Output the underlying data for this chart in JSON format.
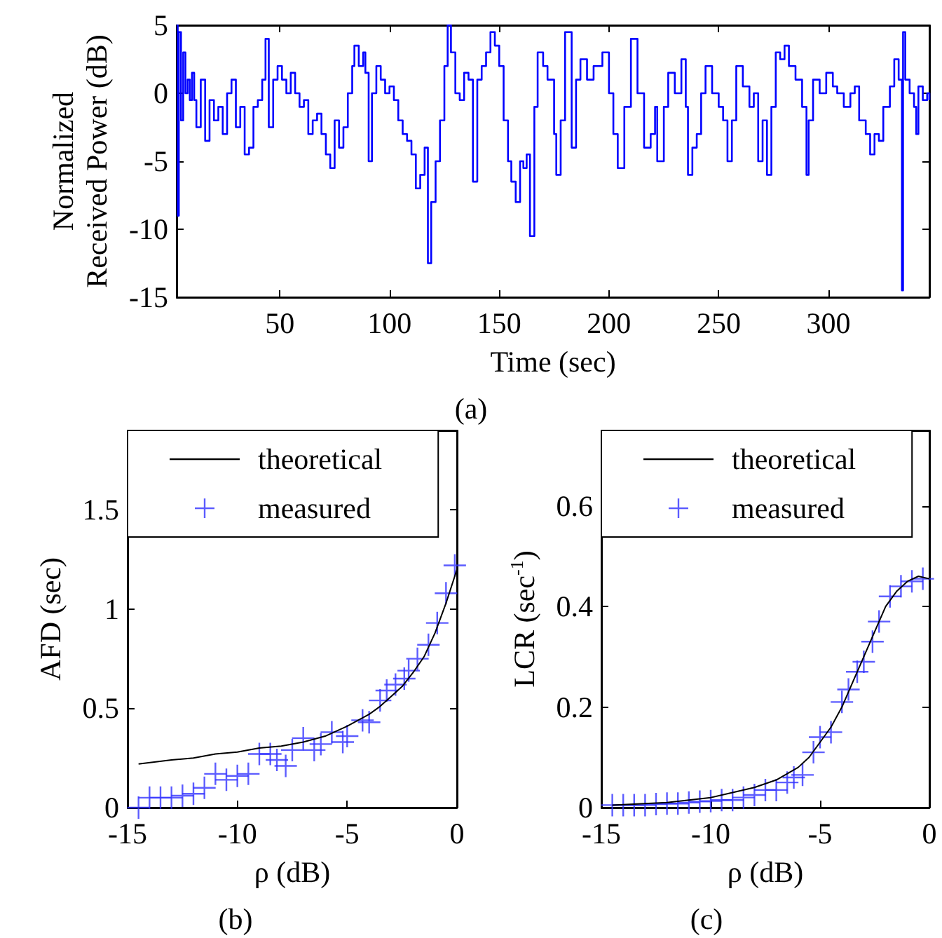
{
  "chart_data": [
    {
      "type": "step",
      "xlabel": "Time (sec)",
      "ylabel": "Normalized\nReceived Power (dB)",
      "annotations": [
        "(a)"
      ],
      "xlim": [
        3,
        346
      ],
      "ylim": [
        -15,
        5
      ],
      "xticks": [
        50,
        100,
        150,
        200,
        250,
        300
      ],
      "yticks": [
        -15,
        -10,
        -5,
        0,
        5
      ],
      "grid": false,
      "legend": false,
      "series": [
        {
          "color": "#0000ff",
          "x": [
            3,
            3.5,
            4,
            5,
            6,
            7,
            8,
            9,
            10,
            11,
            12,
            14,
            16,
            18,
            20,
            22,
            24,
            26,
            28,
            30,
            32,
            34,
            36,
            38,
            40,
            42,
            43.5,
            45,
            47,
            49,
            51,
            53,
            55,
            57,
            59,
            61,
            63,
            65,
            67,
            69,
            71,
            73,
            75,
            77,
            79,
            81,
            83,
            84,
            86,
            88,
            89,
            90.5,
            92,
            94,
            96,
            98,
            100,
            102,
            104,
            106,
            108,
            110,
            112,
            114,
            116,
            117.5,
            119,
            121,
            123,
            125,
            126.5,
            128,
            130,
            132,
            134,
            136,
            138,
            140,
            142,
            144,
            146,
            148,
            150,
            152,
            154,
            155.5,
            157.5,
            159.5,
            161,
            162.5,
            164,
            166,
            167.5,
            170,
            172,
            175,
            176,
            178,
            180,
            183,
            185,
            187,
            190,
            193,
            197,
            200,
            202,
            204,
            207,
            210,
            213,
            216,
            219,
            221,
            222,
            225,
            227,
            230,
            233,
            235,
            236,
            238,
            240,
            242,
            244,
            247,
            250,
            252,
            254,
            256,
            258,
            261,
            264,
            266,
            268,
            270,
            272,
            274,
            276,
            278,
            280,
            282,
            285,
            288,
            290,
            291,
            293,
            296,
            299,
            302,
            304,
            307,
            310,
            312,
            314,
            317,
            319,
            321,
            323,
            325,
            328,
            330,
            332,
            333.5,
            334,
            335,
            337,
            339,
            340,
            341,
            343,
            345,
            346
          ],
          "values": [
            5,
            -9,
            4.5,
            -2,
            3,
            0,
            1,
            -0.5,
            1.5,
            -0.5,
            -2.5,
            1,
            -3.5,
            -0.5,
            -2,
            -1,
            -3,
            0,
            1,
            -2.5,
            -1,
            -4.5,
            -4,
            -1,
            -0.5,
            1,
            4,
            -2.5,
            1,
            2,
            1,
            0,
            1.5,
            0,
            -1,
            -0.5,
            -3,
            -2,
            -1.5,
            -3,
            -4.5,
            -5.5,
            -2,
            -4,
            -2.5,
            0,
            2,
            3.5,
            2,
            3,
            1.5,
            -5,
            0,
            2,
            1,
            0,
            0.5,
            -0.5,
            -2,
            -3,
            -3.5,
            -4.5,
            -7,
            -6,
            -4,
            -12.5,
            -8,
            -5,
            -2,
            2,
            5,
            3,
            0,
            -0.5,
            1.5,
            1,
            -6.5,
            1,
            2,
            3,
            4.5,
            3.5,
            2,
            -2,
            -5,
            -6.5,
            -8,
            -5,
            -5.5,
            -4.5,
            -10.5,
            -1,
            3,
            2,
            1,
            -3,
            -6,
            -2,
            4.5,
            -4,
            1,
            2.5,
            1,
            2,
            3,
            0,
            -3,
            -5.5,
            -1,
            4,
            0,
            -4,
            -3,
            -1,
            -5,
            -1,
            1.5,
            0,
            2.5,
            -1,
            -6,
            -4,
            -3,
            0,
            2,
            0,
            -1,
            -2,
            -5,
            -2,
            2,
            0.5,
            -1,
            0,
            -5,
            -2,
            -6,
            -1,
            3,
            2.5,
            3.5,
            2,
            1,
            -1,
            -6,
            -2,
            1,
            0,
            1.5,
            0.5,
            0,
            -1,
            0,
            0.5,
            -2,
            -3,
            -4.5,
            -3,
            -3.5,
            -1,
            0.5,
            2.5,
            1,
            -14.5,
            4.5,
            1,
            0,
            -1,
            -3,
            0.5,
            -0.5,
            0,
            -0.5
          ]
        }
      ]
    },
    {
      "type": "line",
      "xlabel": "ρ (dB)",
      "ylabel": "AFD (sec)",
      "annotations": [
        "(b)"
      ],
      "xlim": [
        -15,
        0
      ],
      "ylim": [
        0,
        1.9
      ],
      "xticks": [
        -15,
        -10,
        -5,
        0
      ],
      "yticks": [
        0,
        0.5,
        1,
        1.5
      ],
      "grid": false,
      "legend": "top",
      "series": [
        {
          "name": "theoretical",
          "type": "line",
          "color": "#000000",
          "x": [
            -14.5,
            -13,
            -12,
            -11,
            -10,
            -9,
            -8,
            -7,
            -6,
            -5,
            -4.5,
            -4,
            -3.5,
            -3,
            -2.5,
            -2,
            -1.5,
            -1,
            -0.5,
            0
          ],
          "values": [
            0.22,
            0.24,
            0.25,
            0.27,
            0.28,
            0.3,
            0.31,
            0.33,
            0.36,
            0.41,
            0.44,
            0.47,
            0.51,
            0.56,
            0.61,
            0.68,
            0.76,
            0.88,
            1.03,
            1.2
          ]
        },
        {
          "name": "measured",
          "type": "scatter",
          "marker": "cross",
          "color": "#3333ff",
          "x": [
            -14.5,
            -14,
            -13.5,
            -13,
            -12.5,
            -12,
            -11.5,
            -11,
            -10.5,
            -10,
            -9.5,
            -9,
            -8.5,
            -8.2,
            -7.8,
            -7.5,
            -7,
            -6.5,
            -6.2,
            -5.7,
            -5.2,
            -5,
            -4.3,
            -4,
            -3.5,
            -3.2,
            -2.8,
            -2.4,
            -2.2,
            -1.8,
            -1.3,
            -0.9,
            -0.5,
            -0.1
          ],
          "values": [
            0,
            0.05,
            0.05,
            0.05,
            0.06,
            0.07,
            0.1,
            0.17,
            0.14,
            0.16,
            0.17,
            0.27,
            0.27,
            0.24,
            0.21,
            0.29,
            0.35,
            0.29,
            0.32,
            0.38,
            0.33,
            0.36,
            0.44,
            0.43,
            0.54,
            0.59,
            0.62,
            0.65,
            0.69,
            0.75,
            0.82,
            0.93,
            1.08,
            1.22
          ]
        }
      ]
    },
    {
      "type": "line",
      "xlabel": "ρ (dB)",
      "ylabel": "LCR (sec$^{-1}$)",
      "annotations": [
        "(c)"
      ],
      "xlim": [
        -15,
        0
      ],
      "ylim": [
        0,
        0.75
      ],
      "xticks": [
        -15,
        -10,
        -5,
        0
      ],
      "yticks": [
        0,
        0.2,
        0.4,
        0.6
      ],
      "grid": false,
      "legend": "top",
      "series": [
        {
          "name": "theoretical",
          "type": "line",
          "color": "#000000",
          "x": [
            -14.5,
            -12,
            -10,
            -9,
            -8,
            -7,
            -6,
            -5.5,
            -5,
            -4.5,
            -4,
            -3.5,
            -3,
            -2.5,
            -2,
            -1.5,
            -1,
            -0.5,
            0
          ],
          "values": [
            0.005,
            0.01,
            0.02,
            0.03,
            0.04,
            0.055,
            0.08,
            0.1,
            0.13,
            0.16,
            0.2,
            0.25,
            0.3,
            0.35,
            0.4,
            0.43,
            0.45,
            0.46,
            0.455
          ]
        },
        {
          "name": "measured",
          "type": "scatter",
          "marker": "cross",
          "color": "#3333ff",
          "x": [
            -14.5,
            -14,
            -13.5,
            -13,
            -12.5,
            -12,
            -11.5,
            -11,
            -10.5,
            -10,
            -9.5,
            -9,
            -8.5,
            -8,
            -7.5,
            -7,
            -6.5,
            -6.2,
            -5.8,
            -5.3,
            -5,
            -4.5,
            -4,
            -3.7,
            -3.3,
            -3,
            -2.6,
            -2.3,
            -1.8,
            -1.3,
            -0.8,
            -0.3
          ],
          "values": [
            0.005,
            0.005,
            0.005,
            0.005,
            0.007,
            0.008,
            0.008,
            0.01,
            0.012,
            0.013,
            0.015,
            0.015,
            0.02,
            0.025,
            0.035,
            0.035,
            0.05,
            0.06,
            0.065,
            0.11,
            0.14,
            0.15,
            0.21,
            0.235,
            0.27,
            0.29,
            0.33,
            0.37,
            0.42,
            0.44,
            0.45,
            0.455
          ]
        }
      ]
    }
  ]
}
